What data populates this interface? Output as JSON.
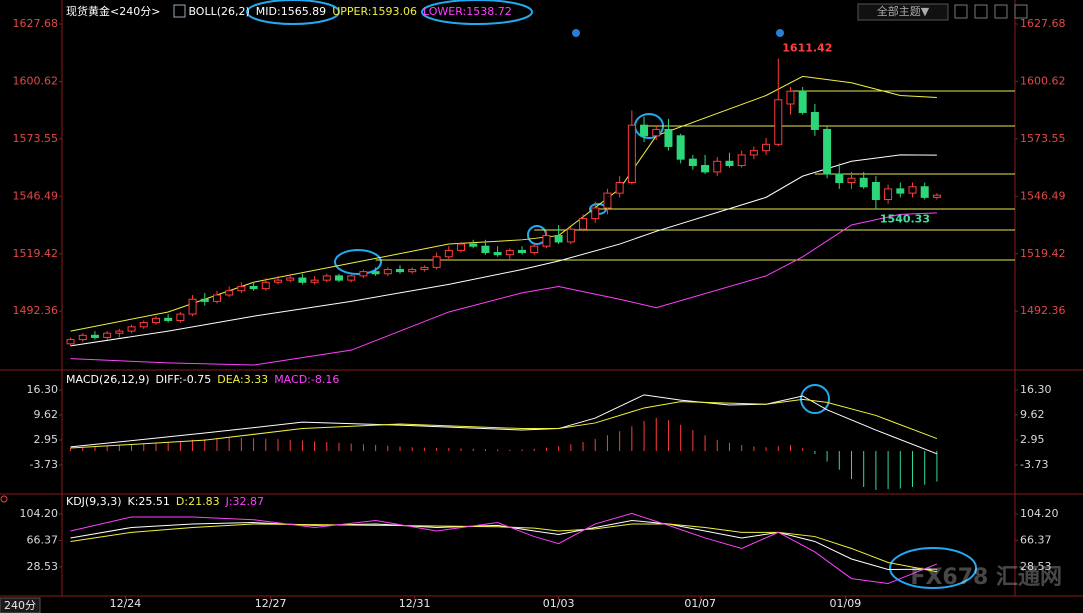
{
  "x_axis": {
    "xlim": [
      -0.7,
      77.4
    ],
    "xticks": [
      {
        "value": 4.5,
        "label": "12/24"
      },
      {
        "value": 16.4,
        "label": "12/27"
      },
      {
        "value": 28.2,
        "label": "12/31"
      },
      {
        "value": 40,
        "label": "01/03"
      },
      {
        "value": 51.6,
        "label": "01/07"
      },
      {
        "value": 63.5,
        "label": "01/09"
      }
    ],
    "period_label": "240分"
  },
  "theme_button": "全部主题▼",
  "watermark": "FX678 汇通网",
  "chart_data": [
    {
      "type": "candlestick",
      "title": "现货黄金<240分>",
      "indicator": "BOLL(26,2)",
      "ylim": [
        1465.6,
        1632.4
      ],
      "yticks": [
        1627.68,
        1600.62,
        1573.55,
        1546.49,
        1519.42,
        1492.36
      ],
      "tick_color": "#e04848",
      "up_color": "#ff3c3c",
      "down_color": "#2ed67a",
      "candles": {
        "open": [
          1477,
          1479,
          1481,
          1480,
          1482,
          1483,
          1485,
          1487,
          1489,
          1488,
          1491,
          1498,
          1497,
          1500,
          1502,
          1504,
          1503,
          1506,
          1507,
          1508,
          1506,
          1507,
          1509,
          1507,
          1509,
          1511,
          1510,
          1512,
          1511,
          1512,
          1513,
          1518,
          1521,
          1524,
          1523,
          1520,
          1519,
          1521,
          1520,
          1523,
          1528,
          1525,
          1531,
          1536,
          1541,
          1548,
          1553,
          1580,
          1575,
          1578,
          1575,
          1564,
          1561,
          1558,
          1563,
          1561,
          1566,
          1568,
          1571,
          1590,
          1596,
          1586,
          1578,
          1557,
          1553,
          1555,
          1553,
          1545,
          1550,
          1548,
          1551,
          1546
        ],
        "high": [
          1480,
          1482,
          1483,
          1483,
          1484,
          1486,
          1488,
          1490,
          1491,
          1492,
          1500,
          1501,
          1502,
          1504,
          1506,
          1506,
          1508,
          1509,
          1510,
          1510,
          1509,
          1510,
          1510,
          1510,
          1512,
          1513,
          1513,
          1514,
          1513,
          1514,
          1520,
          1523,
          1525,
          1526,
          1526,
          1523,
          1522,
          1523,
          1524,
          1530,
          1533,
          1532,
          1538,
          1544,
          1550,
          1556,
          1587,
          1584,
          1580,
          1583,
          1576,
          1566,
          1566,
          1565,
          1567,
          1568,
          1570,
          1574,
          1611.42,
          1598,
          1598,
          1590,
          1580,
          1562,
          1558,
          1558,
          1556,
          1552,
          1553,
          1553,
          1553,
          1548
        ],
        "low": [
          1476,
          1478,
          1479,
          1479,
          1480,
          1482,
          1484,
          1486,
          1487,
          1487,
          1490,
          1495,
          1496,
          1499,
          1501,
          1502,
          1502,
          1505,
          1506,
          1505,
          1505,
          1506,
          1506,
          1506,
          1508,
          1509,
          1509,
          1510,
          1510,
          1511,
          1512,
          1517,
          1520,
          1522,
          1519,
          1518,
          1517,
          1519,
          1519,
          1522,
          1524,
          1524,
          1530,
          1534,
          1538,
          1546,
          1552,
          1572,
          1573,
          1568,
          1562,
          1559,
          1557,
          1556,
          1560,
          1560,
          1564,
          1566,
          1570,
          1585,
          1585,
          1575,
          1555,
          1550,
          1550,
          1550,
          1540.33,
          1543,
          1546,
          1546,
          1545,
          1545
        ],
        "close": [
          1479,
          1481,
          1480,
          1482,
          1483,
          1485,
          1487,
          1489,
          1488,
          1491,
          1498,
          1497,
          1500,
          1502,
          1504,
          1503,
          1506,
          1507,
          1508,
          1506,
          1507,
          1509,
          1507,
          1509,
          1511,
          1510,
          1512,
          1511,
          1512,
          1513,
          1518,
          1521,
          1524,
          1523,
          1520,
          1519,
          1521,
          1520,
          1523,
          1528,
          1525,
          1531,
          1536,
          1541,
          1548,
          1553,
          1580,
          1575,
          1578,
          1570,
          1564,
          1561,
          1558,
          1563,
          1561,
          1566,
          1568,
          1571,
          1592,
          1596,
          1586,
          1578,
          1557,
          1553,
          1555,
          1551,
          1545,
          1550,
          1548,
          1551,
          1546,
          1547
        ]
      },
      "series": [
        {
          "legend": "MID:1565.89",
          "color": "#ffffff",
          "x": [
            0,
            8,
            15,
            23,
            31,
            37,
            40,
            45,
            48,
            57,
            60,
            64,
            68,
            71
          ],
          "values": [
            1476,
            1483,
            1490,
            1497,
            1505,
            1512,
            1516,
            1524,
            1530,
            1546,
            1556,
            1563,
            1566,
            1565.89
          ]
        },
        {
          "legend": "UPPER:1593.06",
          "color": "#f0f040",
          "x": [
            0,
            8,
            15,
            23,
            31,
            37,
            40,
            45,
            48,
            57,
            60,
            64,
            68,
            71
          ],
          "values": [
            1483,
            1492,
            1506,
            1515,
            1524,
            1526,
            1528,
            1550,
            1575,
            1594,
            1603,
            1600,
            1594,
            1593.06
          ]
        },
        {
          "legend": "LOWER:1538.72",
          "color": "#ff40ff",
          "x": [
            0,
            8,
            15,
            23,
            31,
            37,
            40,
            45,
            48,
            57,
            60,
            64,
            68,
            71
          ],
          "values": [
            1470,
            1468,
            1467,
            1474,
            1492,
            1501,
            1504,
            1498,
            1494,
            1509,
            1518,
            1533,
            1538,
            1538.72
          ]
        }
      ],
      "levels": {
        "color": "#e8e850",
        "values": [
          1596.1,
          1579.6,
          1557,
          1540.5,
          1530.6,
          1516.5
        ],
        "from": [
          59,
          47,
          61,
          43,
          38,
          25
        ]
      },
      "annotations": [
        {
          "label": "1611.42",
          "value": 1611.42,
          "x": 58,
          "color": "#ff4040"
        },
        {
          "label": "1540.33",
          "value": 1540.33,
          "x": 66,
          "color": "#40e0a0"
        }
      ]
    },
    {
      "type": "combo",
      "indicator": "MACD(26,12,9)",
      "ylim": [
        -10.94,
        21.1
      ],
      "yticks": [
        {
          "value": 16.3,
          "label": "16.30"
        },
        9.62,
        2.95,
        -3.73
      ],
      "tick_color": "#d8d8d8",
      "bars": {
        "legend": "MACD:-8.16",
        "color": "#ff40ff",
        "pos_color": "#ff3c3c",
        "neg_color": "#30d8a0",
        "values": [
          0.8,
          1.0,
          1.2,
          1.4,
          1.6,
          1.8,
          2.0,
          2.2,
          2.4,
          2.6,
          3.0,
          3.2,
          3.4,
          3.5,
          3.5,
          3.4,
          3.3,
          3.2,
          3.0,
          2.8,
          2.6,
          2.4,
          2.2,
          2.0,
          1.8,
          1.6,
          1.4,
          1.2,
          1.0,
          0.9,
          0.8,
          0.8,
          0.7,
          0.6,
          0.5,
          0.4,
          0.3,
          0.4,
          0.6,
          0.9,
          1.3,
          1.8,
          2.4,
          3.2,
          4.2,
          5.3,
          6.6,
          8.0,
          8.9,
          8.2,
          7.0,
          5.6,
          4.2,
          3.0,
          2.2,
          1.6,
          1.2,
          1.0,
          1.3,
          1.6,
          0.8,
          -0.8,
          -2.8,
          -5.0,
          -7.5,
          -9.6,
          -10.4,
          -10.2,
          -10.0,
          -9.6,
          -9.0,
          -8.16
        ]
      },
      "series": [
        {
          "legend": "DIFF:-0.75",
          "color": "#ffffff",
          "x": [
            0,
            11,
            19,
            27,
            37,
            40,
            43,
            47,
            50,
            54,
            57,
            60,
            62,
            66,
            71
          ],
          "values": [
            1.1,
            4.8,
            7.7,
            6.9,
            5.6,
            6.0,
            8.8,
            15.0,
            13.6,
            12.3,
            12.5,
            14.7,
            11.0,
            5.6,
            -0.75
          ]
        },
        {
          "legend": "DEA:3.33",
          "color": "#f0f040",
          "x": [
            0,
            11,
            19,
            27,
            37,
            40,
            43,
            47,
            50,
            54,
            57,
            60,
            62,
            66,
            71
          ],
          "values": [
            0.8,
            2.9,
            6.0,
            7.2,
            6.0,
            6.0,
            7.5,
            11.5,
            13.2,
            12.8,
            12.5,
            13.8,
            13.0,
            9.5,
            3.33
          ]
        }
      ]
    },
    {
      "type": "line",
      "indicator": "KDJ(9,3,3)",
      "ylim": [
        -10,
        129.9
      ],
      "yticks": [
        {
          "value": 104.2,
          "label": "104.20"
        },
        66.37,
        28.53
      ],
      "tick_color": "#d8d8d8",
      "series": [
        {
          "legend": "K:25.51",
          "color": "#ffffff",
          "x": [
            0,
            5,
            10,
            15,
            20,
            25,
            30,
            35,
            38,
            40,
            43,
            46,
            49,
            52,
            55,
            58,
            61,
            64,
            67,
            71
          ],
          "values": [
            70,
            85,
            90,
            92,
            88,
            90,
            85,
            88,
            80,
            75,
            85,
            95,
            90,
            80,
            70,
            78,
            65,
            40,
            25,
            25.51
          ]
        },
        {
          "legend": "D:21.83",
          "color": "#f0f040",
          "x": [
            0,
            5,
            10,
            15,
            20,
            25,
            30,
            35,
            38,
            40,
            43,
            46,
            49,
            52,
            55,
            58,
            61,
            64,
            67,
            71
          ],
          "values": [
            65,
            78,
            85,
            90,
            89,
            88,
            87,
            86,
            84,
            80,
            83,
            90,
            90,
            85,
            78,
            78,
            72,
            55,
            35,
            21.83
          ]
        },
        {
          "legend": "J:32.87",
          "color": "#ff40ff",
          "x": [
            0,
            5,
            10,
            15,
            20,
            25,
            30,
            35,
            38,
            40,
            43,
            46,
            49,
            52,
            55,
            58,
            61,
            64,
            67,
            71
          ],
          "values": [
            80,
            100,
            100,
            96,
            85,
            95,
            80,
            92,
            72,
            62,
            90,
            105,
            88,
            70,
            55,
            78,
            50,
            12,
            5,
            32.87
          ]
        }
      ]
    }
  ]
}
